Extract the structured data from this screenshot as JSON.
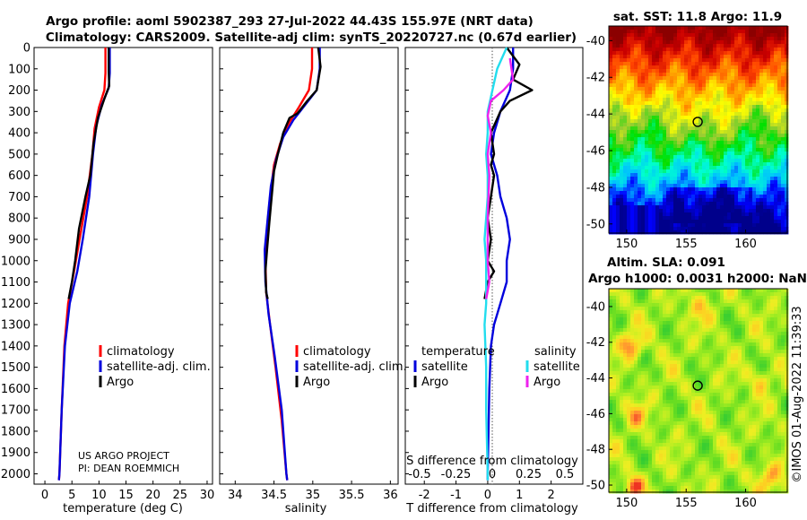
{
  "header": {
    "line1": "Argo profile: aoml 5902387_293 27-Jul-2022 44.43S 155.97E (NRT data)",
    "line2": "Climatology: CARS2009. Satellite-adj clim: synTS_20220727.nc (0.67d earlier)"
  },
  "colors": {
    "climatology": "#ff0000",
    "satellite": "#0000dd",
    "argo": "#000000",
    "sal_sat": "#22ddee",
    "sal_argo": "#ee22ee"
  },
  "chart_data": [
    {
      "type": "line",
      "name": "temperature-panel",
      "xlabel": "temperature (deg C)",
      "ylabel": "depth",
      "xlim": [
        -2,
        31
      ],
      "ylim": [
        2050,
        0
      ],
      "xticks": [
        "0",
        "5",
        "10",
        "15",
        "20",
        "25",
        "30"
      ],
      "xtick_values": [
        0,
        5,
        10,
        15,
        20,
        25,
        30
      ],
      "yticks": [
        "0",
        "100",
        "200",
        "300",
        "400",
        "500",
        "600",
        "700",
        "800",
        "900",
        "1000",
        "1100",
        "1200",
        "1300",
        "1400",
        "1500",
        "1600",
        "1700",
        "1800",
        "1900",
        "2000"
      ],
      "ytick_values": [
        0,
        100,
        200,
        300,
        400,
        500,
        600,
        700,
        800,
        900,
        1000,
        1100,
        1200,
        1300,
        1400,
        1500,
        1600,
        1700,
        1800,
        1900,
        2000
      ],
      "legend": [
        "climatology",
        "satellite-adj. clim.",
        "Argo"
      ],
      "series": [
        {
          "name": "climatology",
          "color": "#ff0000",
          "points": [
            [
              11.2,
              0
            ],
            [
              11.2,
              120
            ],
            [
              11.0,
              200
            ],
            [
              10.0,
              280
            ],
            [
              9.2,
              380
            ],
            [
              8.8,
              500
            ],
            [
              7.8,
              700
            ],
            [
              6.4,
              900
            ],
            [
              5.4,
              1050
            ],
            [
              4.3,
              1200
            ],
            [
              3.6,
              1400
            ],
            [
              3.1,
              1700
            ],
            [
              2.7,
              2000
            ],
            [
              2.6,
              2030
            ]
          ]
        },
        {
          "name": "satellite-adj. clim.",
          "color": "#0000dd",
          "points": [
            [
              12.0,
              0
            ],
            [
              12.0,
              120
            ],
            [
              11.8,
              190
            ],
            [
              10.5,
              270
            ],
            [
              9.5,
              370
            ],
            [
              8.9,
              500
            ],
            [
              8.2,
              700
            ],
            [
              7.0,
              900
            ],
            [
              6.0,
              1050
            ],
            [
              4.6,
              1200
            ],
            [
              3.7,
              1400
            ],
            [
              3.1,
              1700
            ],
            [
              2.7,
              2000
            ],
            [
              2.6,
              2030
            ]
          ]
        },
        {
          "name": "Argo",
          "color": "#000000",
          "points": [
            [
              11.8,
              0
            ],
            [
              11.8,
              110
            ],
            [
              11.9,
              180
            ],
            [
              11.0,
              240
            ],
            [
              9.8,
              330
            ],
            [
              9.0,
              450
            ],
            [
              8.4,
              600
            ],
            [
              7.5,
              700
            ],
            [
              6.3,
              850
            ],
            [
              5.6,
              1000
            ],
            [
              5.0,
              1100
            ],
            [
              4.4,
              1180
            ]
          ]
        }
      ],
      "annotation": [
        "US ARGO PROJECT",
        "PI: DEAN ROEMMICH"
      ]
    },
    {
      "type": "line",
      "name": "salinity-panel",
      "xlabel": "salinity",
      "xlim": [
        33.8,
        36.1
      ],
      "ylim": [
        2050,
        0
      ],
      "xticks": [
        "34",
        "34.5",
        "35",
        "35.5",
        "36"
      ],
      "xtick_values": [
        34,
        34.5,
        35,
        35.5,
        36
      ],
      "legend": [
        "climatology",
        "satellite-adj. clim.",
        "Argo"
      ],
      "series": [
        {
          "name": "climatology",
          "color": "#ff0000",
          "points": [
            [
              34.99,
              0
            ],
            [
              34.99,
              100
            ],
            [
              34.95,
              200
            ],
            [
              34.82,
              280
            ],
            [
              34.7,
              350
            ],
            [
              34.58,
              450
            ],
            [
              34.5,
              550
            ],
            [
              34.45,
              700
            ],
            [
              34.41,
              850
            ],
            [
              34.39,
              1000
            ],
            [
              34.4,
              1150
            ],
            [
              34.45,
              1300
            ],
            [
              34.52,
              1500
            ],
            [
              34.6,
              1750
            ],
            [
              34.66,
              2000
            ],
            [
              34.67,
              2030
            ]
          ]
        },
        {
          "name": "satellite-adj. clim.",
          "color": "#0000dd",
          "points": [
            [
              35.09,
              0
            ],
            [
              35.09,
              100
            ],
            [
              35.05,
              200
            ],
            [
              34.9,
              270
            ],
            [
              34.75,
              340
            ],
            [
              34.62,
              420
            ],
            [
              34.53,
              520
            ],
            [
              34.46,
              650
            ],
            [
              34.42,
              800
            ],
            [
              34.38,
              950
            ],
            [
              34.39,
              1100
            ],
            [
              34.43,
              1250
            ],
            [
              34.51,
              1450
            ],
            [
              34.6,
              1700
            ],
            [
              34.66,
              2000
            ],
            [
              34.67,
              2030
            ]
          ]
        },
        {
          "name": "Argo",
          "color": "#000000",
          "points": [
            [
              35.07,
              0
            ],
            [
              35.1,
              90
            ],
            [
              35.05,
              200
            ],
            [
              34.93,
              250
            ],
            [
              34.8,
              310
            ],
            [
              34.7,
              330
            ],
            [
              34.62,
              400
            ],
            [
              34.55,
              500
            ],
            [
              34.5,
              580
            ],
            [
              34.47,
              700
            ],
            [
              34.44,
              820
            ],
            [
              34.41,
              950
            ],
            [
              34.39,
              1050
            ],
            [
              34.4,
              1150
            ],
            [
              34.42,
              1180
            ]
          ]
        }
      ]
    },
    {
      "type": "line",
      "name": "difference-panel",
      "xlabel": "T difference from climatology",
      "xlabel2": "S difference from climatology",
      "xlim": [
        -2.6,
        3.0
      ],
      "ylim": [
        2050,
        0
      ],
      "xticks": [
        "-2",
        "-1",
        "0",
        "1",
        "2"
      ],
      "xtick_values": [
        -2,
        -1,
        0,
        1,
        2
      ],
      "xticks2": [
        "-0.5",
        "-0.25",
        "0",
        "0.25",
        "0.5"
      ],
      "xtick2_values": [
        -0.5,
        -0.25,
        0,
        0.25,
        0.5
      ],
      "legend_temperature_title": "temperature",
      "legend_salinity_title": "salinity",
      "legend_temperature": [
        "satellite",
        "Argo"
      ],
      "legend_salinity": [
        "satellite",
        "Argo"
      ],
      "series": [
        {
          "name": "temperature satellite",
          "color": "#0000dd",
          "points": [
            [
              0.8,
              0
            ],
            [
              0.8,
              100
            ],
            [
              0.7,
              200
            ],
            [
              0.4,
              300
            ],
            [
              0.2,
              400
            ],
            [
              0.1,
              500
            ],
            [
              0.3,
              600
            ],
            [
              0.4,
              700
            ],
            [
              0.6,
              800
            ],
            [
              0.7,
              900
            ],
            [
              0.6,
              1000
            ],
            [
              0.6,
              1100
            ],
            [
              0.4,
              1200
            ],
            [
              0.2,
              1300
            ],
            [
              0.1,
              1400
            ],
            [
              0.05,
              1600
            ],
            [
              0.0,
              2000
            ],
            [
              0.0,
              2030
            ]
          ]
        },
        {
          "name": "temperature Argo",
          "color": "#000000",
          "points": [
            [
              0.6,
              0
            ],
            [
              1.0,
              80
            ],
            [
              0.8,
              150
            ],
            [
              1.4,
              200
            ],
            [
              0.7,
              250
            ],
            [
              0.4,
              300
            ],
            [
              0.1,
              400
            ],
            [
              0.2,
              500
            ],
            [
              0.1,
              550
            ],
            [
              0.2,
              600
            ],
            [
              0.1,
              700
            ],
            [
              0.0,
              800
            ],
            [
              0.1,
              900
            ],
            [
              0.0,
              1000
            ],
            [
              0.2,
              1050
            ],
            [
              0.0,
              1100
            ],
            [
              -0.1,
              1180
            ]
          ]
        },
        {
          "name": "salinity satellite",
          "color": "#22ddee",
          "points": [
            [
              0.6,
              0
            ],
            [
              0.3,
              100
            ],
            [
              0.15,
              200
            ],
            [
              0.0,
              300
            ],
            [
              0.0,
              400
            ],
            [
              -0.05,
              500
            ],
            [
              0.0,
              600
            ],
            [
              0.0,
              700
            ],
            [
              -0.05,
              800
            ],
            [
              -0.1,
              900
            ],
            [
              -0.05,
              1000
            ],
            [
              -0.05,
              1100
            ],
            [
              -0.05,
              1200
            ],
            [
              -0.1,
              1300
            ],
            [
              -0.05,
              1500
            ],
            [
              -0.05,
              1700
            ],
            [
              0.0,
              2000
            ],
            [
              0.0,
              2030
            ]
          ]
        },
        {
          "name": "salinity Argo",
          "color": "#ee22ee",
          "points": [
            [
              0.7,
              50
            ],
            [
              0.8,
              150
            ],
            [
              0.5,
              200
            ],
            [
              0.1,
              250
            ],
            [
              0.0,
              320
            ],
            [
              0.1,
              400
            ],
            [
              0.0,
              500
            ],
            [
              0.05,
              600
            ],
            [
              0.0,
              800
            ],
            [
              0.0,
              1000
            ],
            [
              0.05,
              1100
            ],
            [
              -0.05,
              1180
            ]
          ]
        }
      ]
    },
    {
      "type": "heatmap",
      "name": "sst-map",
      "title": "sat. SST: 11.8  Argo: 11.9",
      "xlim": [
        148.5,
        163.5
      ],
      "ylim": [
        -50.5,
        -39.2
      ],
      "xticks": [
        "150",
        "155",
        "160"
      ],
      "xtick_values": [
        150,
        155,
        160
      ],
      "yticks": [
        "-40",
        "-42",
        "-44",
        "-46",
        "-48",
        "-50"
      ],
      "ytick_values": [
        -40,
        -42,
        -44,
        -46,
        -48,
        -50
      ],
      "argo_position": [
        155.97,
        -44.43
      ],
      "colorscale": [
        "#00008b",
        "#0000ff",
        "#00bfff",
        "#00ffd0",
        "#00e000",
        "#9acd32",
        "#ffff00",
        "#ffa500",
        "#ff4500",
        "#cc0000",
        "#8b0000"
      ]
    },
    {
      "type": "heatmap",
      "name": "sla-map",
      "title": "Altim. SLA: 0.091",
      "subtitle": "Argo h1000: 0.0031  h2000: NaN",
      "xlim": [
        148.5,
        163.5
      ],
      "ylim": [
        -50.4,
        -39.0
      ],
      "xticks": [
        "150",
        "155",
        "160"
      ],
      "xtick_values": [
        150,
        155,
        160
      ],
      "yticks": [
        "-40",
        "-42",
        "-44",
        "-46",
        "-48",
        "-50"
      ],
      "ytick_values": [
        -40,
        -42,
        -44,
        -46,
        -48,
        -50
      ],
      "argo_position": [
        155.97,
        -44.43
      ],
      "colorscale": [
        "#33cc33",
        "#66dd22",
        "#aaee22",
        "#eeee22",
        "#ffcc22",
        "#ff8833",
        "#ee3322"
      ]
    }
  ],
  "credit": "©IMOS 01-Aug-2022 11:39:33"
}
